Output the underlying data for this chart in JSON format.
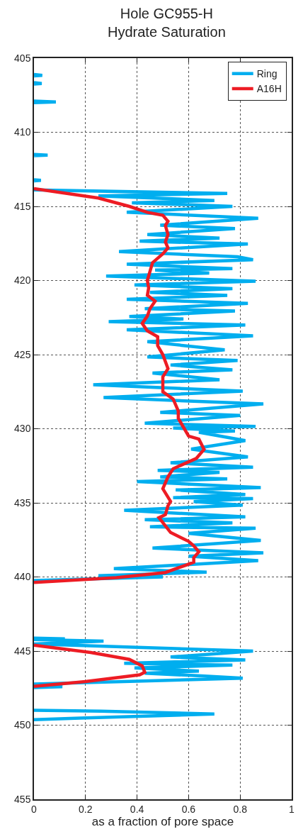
{
  "chart_data": {
    "type": "line",
    "title": "Hole GC955-H\nHydrate Saturation",
    "xlabel": "as a fraction of pore space",
    "xlim": [
      0,
      1
    ],
    "xticks": [
      0,
      0.2,
      0.4,
      0.6,
      0.8,
      1
    ],
    "ylim": [
      455,
      405
    ],
    "yticks": [
      405,
      410,
      415,
      420,
      425,
      430,
      435,
      440,
      445,
      450,
      455
    ],
    "grid": true,
    "legend": "top right",
    "line_style": "solid",
    "marker": "none",
    "series": [
      {
        "name": "Ring",
        "color": "#00aeef",
        "x": [
          0,
          0.032,
          0,
          null,
          0,
          0.03,
          0,
          null,
          0,
          0.085,
          0,
          null,
          0,
          0.053,
          0,
          null,
          0,
          0.027,
          0,
          null,
          0,
          0.75,
          0.25,
          0.7,
          0.38,
          0.77,
          0.36,
          0.87,
          0.49,
          0.78,
          0.44,
          0.72,
          0.41,
          0.83,
          0.33,
          0.79,
          0.85,
          0.36,
          0.77,
          0.47,
          0.68,
          0.28,
          0.86,
          0.39,
          0.77,
          0.45,
          0.75,
          0.36,
          0.83,
          0.43,
          0.78,
          0.37,
          0.58,
          0.29,
          0.82,
          0.36,
          0.85,
          0.44,
          0.74,
          0.44,
          0.79,
          0.53,
          0.77,
          0.46,
          0.72,
          0.23,
          0.81,
          0.27,
          0.89,
          0.49,
          0.8,
          0.43,
          0.86,
          0.54,
          0.78,
          0.64,
          0.82,
          0.61,
          0.83,
          0.53,
          0.85,
          0.48,
          0.72,
          0.49,
          0.75,
          0.4,
          0.88,
          0.55,
          0.82,
          0.54,
          0.85,
          0.62,
          0.81,
          0.35,
          0.82,
          0.43,
          0.77,
          0.45,
          0.86,
          0.6,
          0.88,
          0.46,
          0.89,
          0.6,
          0.87,
          0.31,
          0.67,
          0.25,
          0.5,
          0,
          null,
          0,
          0.12,
          0,
          0.27,
          0,
          0.85,
          0.53,
          0.82,
          0.35,
          0.77,
          0.39,
          0.64,
          0.43,
          0.65,
          0.81,
          0,
          0.11,
          0,
          null,
          0,
          0.26,
          0.7,
          0.18,
          0
        ],
        "values": [
          406.1,
          406.16,
          406.2,
          null,
          406.65,
          406.71,
          406.75,
          null,
          407.9,
          407.95,
          408.0,
          null,
          411.5,
          411.54,
          411.58,
          null,
          413.2,
          413.24,
          413.28,
          null,
          413.89,
          414.13,
          414.29,
          414.6,
          414.76,
          415.0,
          415.4,
          415.8,
          416.27,
          416.5,
          416.9,
          417.14,
          417.35,
          417.54,
          418.05,
          418.4,
          418.6,
          418.9,
          419.2,
          419.3,
          419.5,
          419.7,
          420.05,
          420.3,
          420.55,
          420.8,
          421.0,
          421.27,
          421.54,
          421.9,
          422.06,
          422.43,
          422.6,
          422.78,
          423.0,
          423.33,
          423.73,
          424.13,
          424.68,
          425.16,
          425.4,
          425.7,
          426.03,
          426.24,
          426.7,
          427.03,
          427.46,
          427.9,
          428.33,
          428.9,
          429.1,
          429.63,
          429.84,
          429.95,
          430.16,
          430.24,
          430.8,
          431.38,
          431.9,
          432.3,
          432.59,
          432.81,
          432.94,
          433.25,
          433.38,
          433.57,
          433.97,
          434.13,
          434.44,
          434.65,
          434.71,
          434.92,
          435.16,
          435.5,
          435.95,
          436.14,
          436.35,
          436.62,
          436.71,
          437.06,
          437.54,
          438.05,
          438.37,
          438.6,
          438.9,
          439.44,
          439.68,
          439.92,
          440.0,
          440.24,
          null,
          444.13,
          444.17,
          444.22,
          444.33,
          444.52,
          445.0,
          445.4,
          445.6,
          445.83,
          445.95,
          446.14,
          446.35,
          446.5,
          446.67,
          446.83,
          447.22,
          447.4,
          447.46,
          null,
          449.0,
          449.05,
          449.25,
          449.52,
          449.63
        ]
      },
      {
        "name": "A16H",
        "color": "#ed1c24",
        "x": [
          0,
          0.25,
          0.37,
          0.44,
          0.5,
          0.52,
          0.51,
          0.52,
          0.51,
          0.52,
          0.5,
          0.46,
          0.45,
          0.44,
          0.445,
          0.44,
          0.47,
          0.45,
          0.44,
          0.42,
          0.44,
          0.48,
          0.48,
          0.5,
          0.52,
          0.5,
          0.5,
          0.54,
          0.56,
          0.56,
          0.58,
          0.6,
          0.64,
          0.66,
          0.63,
          0.54,
          0.52,
          0.5,
          0.53,
          0.52,
          0.51,
          0.485,
          0.53,
          0.6,
          0.62,
          0.64,
          0.62,
          0.62,
          0.59,
          0.51,
          0.32,
          0,
          null,
          0,
          0.22,
          0.37,
          0.42,
          0.43,
          0.41,
          0.2,
          0
        ],
        "values": [
          413.8,
          414.44,
          415.0,
          415.4,
          415.6,
          416.0,
          416.3,
          416.9,
          417.4,
          417.8,
          418.2,
          418.8,
          419.4,
          420.0,
          420.5,
          421.0,
          421.4,
          421.9,
          422.4,
          422.9,
          423.4,
          423.8,
          424.4,
          425.0,
          425.95,
          426.5,
          427.5,
          428.0,
          428.8,
          429.3,
          429.9,
          430.5,
          430.7,
          431.4,
          432.0,
          432.7,
          433.25,
          434.05,
          434.9,
          435.2,
          435.8,
          436.0,
          437.0,
          437.6,
          437.9,
          438.3,
          438.7,
          439.0,
          439.2,
          439.7,
          440.05,
          440.37,
          null,
          444.6,
          445.1,
          445.56,
          446.0,
          446.43,
          446.6,
          447.06,
          447.38
        ]
      }
    ]
  }
}
